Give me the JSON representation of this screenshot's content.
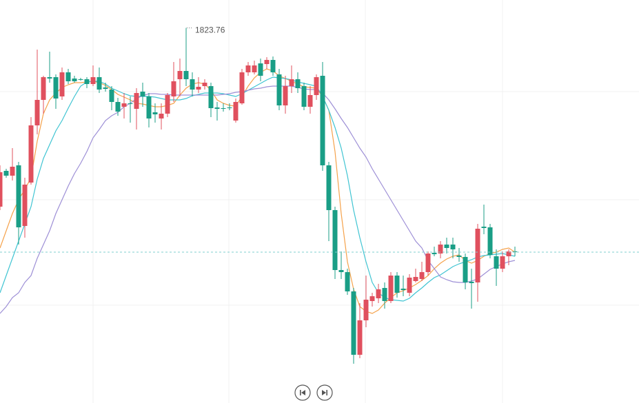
{
  "chart_data": {
    "type": "candlestick",
    "ylim": [
      1551.5,
      1844
    ],
    "up_color": "#e0505e",
    "down_color": "#1a9e86",
    "open": [
      1694,
      1720,
      1716.5,
      1724,
      1680,
      1711.5,
      1753,
      1771.5,
      1788,
      1788,
      1774,
      1791.5,
      1787,
      1786.5,
      1786.5,
      1783,
      1788,
      1780.5,
      1779,
      1770,
      1766.5,
      1769,
      1765,
      1777.5,
      1774,
      1762.5,
      1758,
      1761.5,
      1774,
      1786.5,
      1792.5,
      1786.5,
      1779,
      1781.5,
      1781.5,
      1766,
      1765.5,
      1766,
      1756.5,
      1769,
      1791.5,
      1791.5,
      1798,
      1797.5,
      1800.5,
      1790,
      1767.5,
      1781.5,
      1786.5,
      1781.5,
      1766.5,
      1775,
      1789,
      1724,
      1691.5,
      1648,
      1646.5,
      1632.5,
      1586.5,
      1611.5,
      1625.5,
      1627.5,
      1635,
      1625.5,
      1644,
      1634.5,
      1631.5,
      1640,
      1641.5,
      1646.5,
      1660.5,
      1660,
      1666.5,
      1666.5,
      1658.5,
      1657.5,
      1639.5,
      1639,
      1679.5,
      1679,
      1658,
      1649,
      1658,
      1661.5
    ],
    "high": [
      1724,
      1721.5,
      1736.5,
      1726.5,
      1715,
      1759,
      1808,
      1789,
      1806.5,
      1790,
      1795,
      1794,
      1789,
      1787.5,
      1788,
      1796.5,
      1795,
      1784,
      1781.5,
      1773,
      1776.5,
      1774,
      1780,
      1784,
      1776.5,
      1769,
      1769,
      1776.5,
      1799,
      1801.5,
      1823.76,
      1791.5,
      1788,
      1786.5,
      1784,
      1770,
      1769,
      1769,
      1772.5,
      1794,
      1799,
      1800,
      1801.5,
      1802.5,
      1803,
      1794,
      1789,
      1796.5,
      1791.5,
      1784,
      1781.5,
      1790,
      1799,
      1726.5,
      1694,
      1661.5,
      1649,
      1635,
      1624,
      1644,
      1631.5,
      1638,
      1639,
      1646.5,
      1646.5,
      1644,
      1645,
      1649,
      1654,
      1661.5,
      1665,
      1669,
      1671.5,
      1671.5,
      1664,
      1660,
      1649,
      1681.5,
      1695.5,
      1681.5,
      1663,
      1661.5,
      1663,
      1665
    ],
    "low": [
      1691.5,
      1715,
      1713,
      1666.5,
      1671.5,
      1710,
      1746.5,
      1761.5,
      1784,
      1765,
      1771.5,
      1783,
      1784,
      1785.5,
      1780,
      1781.5,
      1776.5,
      1777.5,
      1764,
      1760,
      1758,
      1755,
      1750,
      1766.5,
      1751.5,
      1755,
      1750,
      1759,
      1770,
      1774,
      1781.5,
      1774,
      1776.5,
      1779,
      1759,
      1756.5,
      1763,
      1764,
      1755,
      1768,
      1789,
      1790,
      1785,
      1794,
      1789,
      1764,
      1761.5,
      1776.5,
      1776.5,
      1764,
      1761.5,
      1771.5,
      1720,
      1669,
      1641.5,
      1641.5,
      1630,
      1580,
      1584,
      1606.5,
      1621.5,
      1624,
      1620,
      1624,
      1628,
      1629,
      1629,
      1639,
      1640,
      1644,
      1658,
      1656.5,
      1660,
      1656.5,
      1654,
      1634,
      1620,
      1625,
      1674,
      1656.5,
      1636.5,
      1646.5,
      1651.5,
      1658
    ],
    "close": [
      1719,
      1716.5,
      1723,
      1679,
      1710,
      1753,
      1771.5,
      1788,
      1787,
      1772.5,
      1791.5,
      1785,
      1785,
      1786,
      1783,
      1788,
      1779,
      1779.5,
      1770,
      1763,
      1769,
      1768.5,
      1776.5,
      1774,
      1758,
      1761,
      1761.5,
      1775,
      1785,
      1792.5,
      1786.5,
      1779,
      1781,
      1784,
      1765.5,
      1765,
      1765,
      1765.5,
      1770,
      1791.5,
      1796.5,
      1796.5,
      1789,
      1800.5,
      1791.5,
      1767.5,
      1781.5,
      1786.5,
      1780,
      1766.5,
      1775,
      1788,
      1724,
      1691.5,
      1648,
      1646.5,
      1632.5,
      1586.5,
      1611.5,
      1626.5,
      1629,
      1634,
      1625.5,
      1644,
      1631.5,
      1633.5,
      1642.5,
      1643,
      1646.5,
      1660,
      1659.5,
      1666.5,
      1664,
      1663,
      1657.5,
      1639,
      1638.5,
      1678,
      1678.5,
      1659,
      1649,
      1658,
      1661.5,
      1661
    ],
    "lines": [
      {
        "color": "#f5a24b",
        "values": [
          1664,
          1676.5,
          1689,
          1699,
          1706.5,
          1715,
          1741.5,
          1761.5,
          1771.5,
          1776.5,
          1780.5,
          1782.5,
          1784,
          1784,
          1784.5,
          1785,
          1784,
          1782,
          1779,
          1775.5,
          1773.5,
          1771.5,
          1769,
          1768.5,
          1767.5,
          1766.5,
          1766.5,
          1767.5,
          1769,
          1775,
          1780,
          1783,
          1784,
          1783,
          1778.5,
          1771.5,
          1769,
          1767.5,
          1767,
          1774,
          1781.5,
          1787.5,
          1791.5,
          1794,
          1792.5,
          1789,
          1787,
          1785,
          1783,
          1781,
          1780.5,
          1780,
          1774,
          1764,
          1734,
          1689,
          1654,
          1634,
          1621.5,
          1618,
          1616.5,
          1619,
          1624,
          1628,
          1631.5,
          1633,
          1635,
          1637.5,
          1640.5,
          1644,
          1649,
          1653,
          1656,
          1658,
          1659,
          1655,
          1653,
          1655,
          1658,
          1660,
          1661,
          1663,
          1664,
          1661
        ]
      },
      {
        "color": "#3fc4d2",
        "values": [
          1631.5,
          1644,
          1656.5,
          1669,
          1681.5,
          1694,
          1714,
          1729,
          1739,
          1749,
          1756.5,
          1765.5,
          1774,
          1781.5,
          1784.5,
          1785,
          1785,
          1783,
          1780,
          1778,
          1776,
          1774.5,
          1774,
          1774,
          1774,
          1773.5,
          1772.5,
          1771.5,
          1771.5,
          1771.5,
          1772.5,
          1774.5,
          1775.5,
          1776.5,
          1776.5,
          1776.5,
          1776,
          1775,
          1774,
          1776,
          1778.5,
          1781,
          1783.5,
          1786,
          1788,
          1787.5,
          1787,
          1786,
          1784.5,
          1783.5,
          1782.5,
          1781.5,
          1774,
          1764,
          1751.5,
          1736.5,
          1716.5,
          1691.5,
          1671.5,
          1654,
          1639,
          1631.5,
          1628,
          1626.5,
          1626,
          1625.5,
          1627.5,
          1631.5,
          1635,
          1639,
          1642.5,
          1644.5,
          1647.5,
          1650.5,
          1652.5,
          1654,
          1655.5,
          1657.5,
          1658.5,
          1659,
          1659.5,
          1660,
          1659,
          1658
        ]
      },
      {
        "color": "#9d8fd6",
        "values": [
          1616.5,
          1621.5,
          1628,
          1631.5,
          1639,
          1644,
          1656.5,
          1666.5,
          1676.5,
          1689,
          1699,
          1709,
          1718,
          1725.5,
          1734,
          1744,
          1750,
          1756.5,
          1760,
          1762.5,
          1766.5,
          1769,
          1772.5,
          1774.5,
          1776,
          1776,
          1775.5,
          1775.5,
          1775,
          1775,
          1775,
          1775,
          1775,
          1775,
          1775,
          1775,
          1775.5,
          1776,
          1777,
          1777.5,
          1778.5,
          1779.5,
          1780,
          1781,
          1781.5,
          1781.5,
          1781.5,
          1781.5,
          1780.5,
          1779.5,
          1779,
          1779,
          1776.5,
          1771.5,
          1765,
          1758,
          1751.5,
          1744,
          1736.5,
          1730,
          1721.5,
          1714,
          1706.5,
          1699,
          1691.5,
          1684,
          1676.5,
          1669,
          1664,
          1655,
          1649,
          1643,
          1641,
          1639.5,
          1639,
          1639,
          1640,
          1641.5,
          1645,
          1648.5,
          1650.5,
          1652.5,
          1654,
          1655
        ]
      }
    ]
  }
}
